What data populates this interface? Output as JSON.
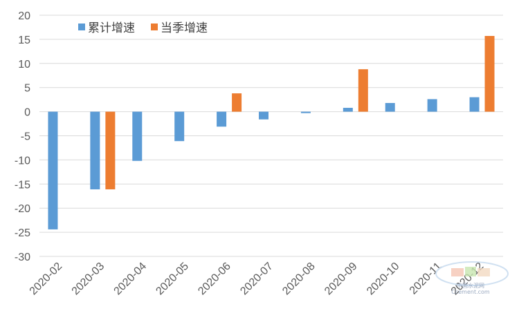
{
  "colors": {
    "accent_blue": "#5b9bd5",
    "accent_orange": "#ed7d31",
    "grid": "#d9d9d9",
    "axis_text": "#595959"
  },
  "chart_data": {
    "type": "bar",
    "title": "",
    "xlabel": "",
    "ylabel": "",
    "categories": [
      "2020-02",
      "2020-03",
      "2020-04",
      "2020-05",
      "2020-06",
      "2020-07",
      "2020-08",
      "2020-09",
      "2020-10",
      "2020-11",
      "2020-12"
    ],
    "series": [
      {
        "name": "累计增速",
        "color": "#5b9bd5",
        "values": [
          -24.4,
          -16.1,
          -10.2,
          -6.1,
          -3.1,
          -1.6,
          -0.3,
          0.8,
          1.8,
          2.6,
          3.0
        ]
      },
      {
        "name": "当季增速",
        "color": "#ed7d31",
        "values": [
          null,
          -16.1,
          null,
          null,
          3.8,
          null,
          null,
          8.8,
          null,
          null,
          15.7
        ]
      }
    ],
    "ylim": [
      -30,
      20
    ],
    "yticks": [
      "20",
      "15",
      "10",
      "5",
      "0",
      "-5",
      "-10",
      "-15",
      "-20",
      "-25",
      "-30"
    ],
    "grid": true,
    "legend": "top-left"
  },
  "watermark": {
    "label": "中国水泥网",
    "sublabel": "Ccement.com"
  }
}
